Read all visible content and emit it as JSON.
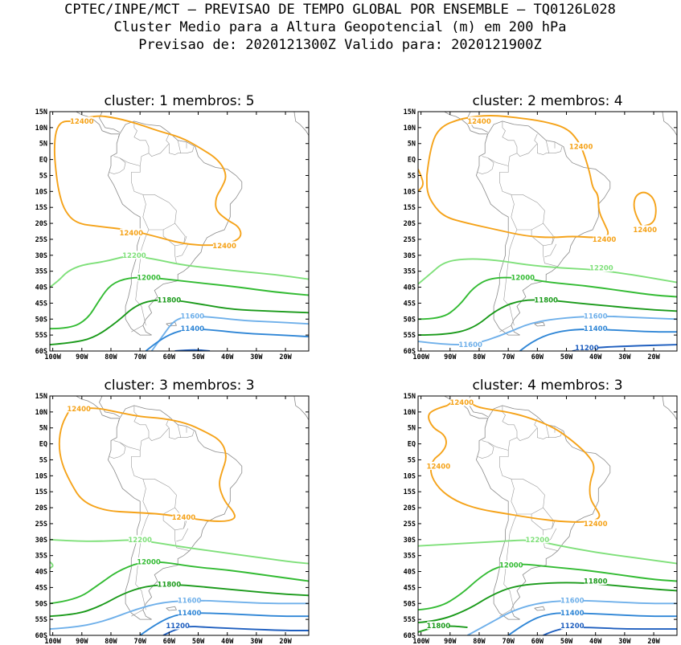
{
  "header": {
    "line1": "CPTEC/INPE/MCT – PREVISAO DE TEMPO GLOBAL POR ENSEMBLE – TQ0126L028",
    "line2": "Cluster Medio para a Altura Geopotencial (m) em 200 hPa",
    "line3": "Previsao de: 2020121300Z   Valido para: 2020121900Z"
  },
  "axes": {
    "lon_ticks": [
      "100W",
      "90W",
      "80W",
      "70W",
      "60W",
      "50W",
      "40W",
      "30W",
      "20W"
    ],
    "lon_values": [
      -100,
      -90,
      -80,
      -70,
      -60,
      -50,
      -40,
      -30,
      -20
    ],
    "lat_ticks": [
      "15N",
      "10N",
      "5N",
      "EQ",
      "5S",
      "10S",
      "15S",
      "20S",
      "25S",
      "30S",
      "35S",
      "40S",
      "45S",
      "50S",
      "55S",
      "60S"
    ],
    "lat_values": [
      15,
      10,
      5,
      0,
      -5,
      -10,
      -15,
      -20,
      -25,
      -30,
      -35,
      -40,
      -45,
      -50,
      -55,
      -60
    ],
    "lon_range": [
      -101,
      -12
    ],
    "lat_range": [
      -60,
      15
    ]
  },
  "contour_colors": {
    "12400": "#f5a31a",
    "12200": "#7fe07a",
    "12000": "#33bb33",
    "11800": "#1a9a1a",
    "11600": "#6fb0ea",
    "11400": "#2f86d6",
    "11200": "#1f5fbf"
  },
  "panels": [
    {
      "title": "cluster: 1   membros: 5",
      "labels": [
        {
          "text": "12400",
          "level": "12400",
          "lon": -90,
          "lat": 12
        },
        {
          "text": "12400",
          "level": "12400",
          "lon": -73,
          "lat": -23
        },
        {
          "text": "12400",
          "level": "12400",
          "lon": -41,
          "lat": -27
        },
        {
          "text": "12200",
          "level": "12200",
          "lon": -72,
          "lat": -30
        },
        {
          "text": "12000",
          "level": "12000",
          "lon": -67,
          "lat": -37
        },
        {
          "text": "11800",
          "level": "11800",
          "lon": -60,
          "lat": -44
        },
        {
          "text": "11600",
          "level": "11600",
          "lon": -52,
          "lat": -49
        },
        {
          "text": "11400",
          "level": "11400",
          "lon": -52,
          "lat": -53
        }
      ]
    },
    {
      "title": "cluster: 2   membros: 4",
      "labels": [
        {
          "text": "12400",
          "level": "12400",
          "lon": -80,
          "lat": 12
        },
        {
          "text": "12400",
          "level": "12400",
          "lon": -45,
          "lat": 4
        },
        {
          "text": "12400",
          "level": "12400",
          "lon": -37,
          "lat": -25
        },
        {
          "text": "12400",
          "level": "12400",
          "lon": -23,
          "lat": -22
        },
        {
          "text": "12200",
          "level": "12200",
          "lon": -38,
          "lat": -34
        },
        {
          "text": "12000",
          "level": "12000",
          "lon": -65,
          "lat": -37
        },
        {
          "text": "11800",
          "level": "11800",
          "lon": -57,
          "lat": -44
        },
        {
          "text": "11600",
          "level": "11600",
          "lon": -40,
          "lat": -49
        },
        {
          "text": "11400",
          "level": "11400",
          "lon": -40,
          "lat": -53
        },
        {
          "text": "11600",
          "level": "11600",
          "lon": -83,
          "lat": -58
        },
        {
          "text": "11200",
          "level": "11200",
          "lon": -43,
          "lat": -59
        }
      ]
    },
    {
      "title": "cluster: 3   membros: 3",
      "labels": [
        {
          "text": "12400",
          "level": "12400",
          "lon": -91,
          "lat": 11
        },
        {
          "text": "12400",
          "level": "12400",
          "lon": -55,
          "lat": -23
        },
        {
          "text": "12200",
          "level": "12200",
          "lon": -70,
          "lat": -30
        },
        {
          "text": "12000",
          "level": "12000",
          "lon": -67,
          "lat": -37
        },
        {
          "text": "11800",
          "level": "11800",
          "lon": -60,
          "lat": -44
        },
        {
          "text": "11600",
          "level": "11600",
          "lon": -53,
          "lat": -49
        },
        {
          "text": "11400",
          "level": "11400",
          "lon": -53,
          "lat": -53
        },
        {
          "text": "11200",
          "level": "11200",
          "lon": -57,
          "lat": -57
        }
      ]
    },
    {
      "title": "cluster: 4   membros: 3",
      "labels": [
        {
          "text": "12400",
          "level": "12400",
          "lon": -86,
          "lat": 13
        },
        {
          "text": "12400",
          "level": "12400",
          "lon": -94,
          "lat": -7
        },
        {
          "text": "12400",
          "level": "12400",
          "lon": -40,
          "lat": -25
        },
        {
          "text": "12200",
          "level": "12200",
          "lon": -60,
          "lat": -30
        },
        {
          "text": "12000",
          "level": "12000",
          "lon": -69,
          "lat": -38
        },
        {
          "text": "11800",
          "level": "11800",
          "lon": -40,
          "lat": -43
        },
        {
          "text": "11600",
          "level": "11600",
          "lon": -48,
          "lat": -49
        },
        {
          "text": "11400",
          "level": "11400",
          "lon": -48,
          "lat": -53
        },
        {
          "text": "11800",
          "level": "11800",
          "lon": -94,
          "lat": -57
        },
        {
          "text": "11200",
          "level": "11200",
          "lon": -48,
          "lat": -57
        }
      ]
    }
  ]
}
